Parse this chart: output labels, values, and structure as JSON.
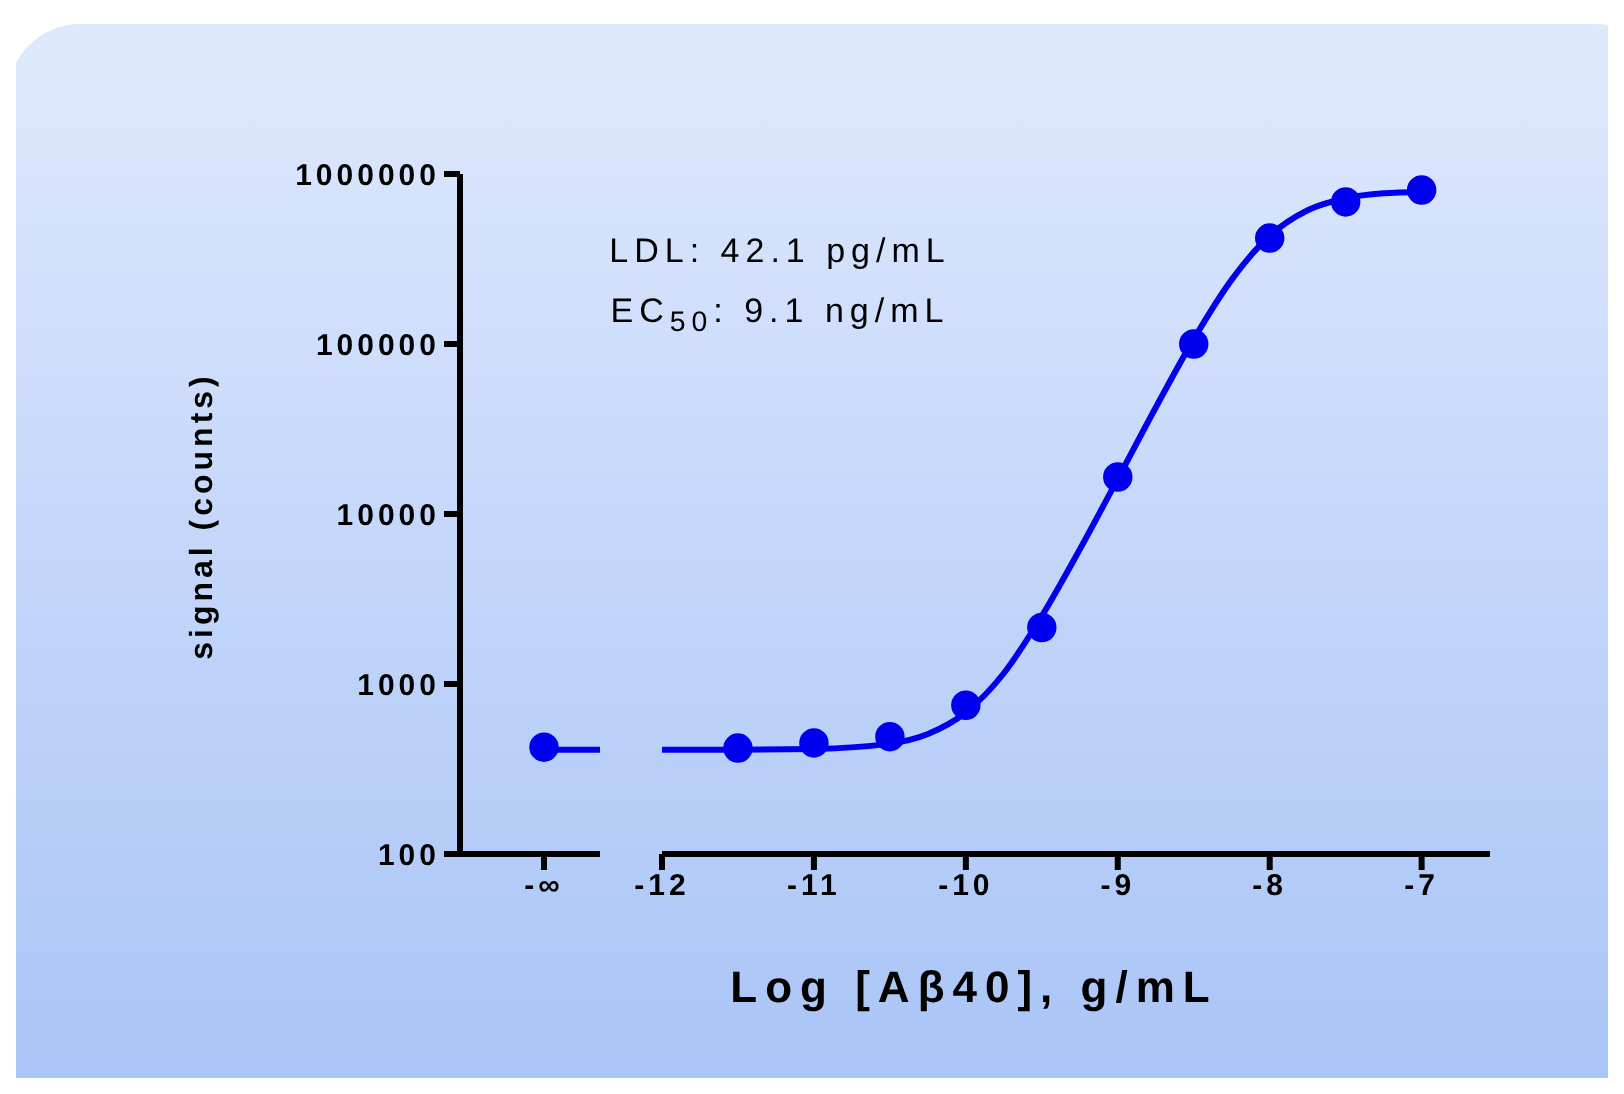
{
  "chart_data": [
    {
      "type": "scatter",
      "ylabel": "signal (counts)",
      "categories": [
        "-∞"
      ],
      "ylim": [
        100,
        1000000
      ],
      "yticks": [
        100,
        1000,
        10000,
        100000,
        1000000
      ],
      "log": "y",
      "grid": false,
      "ref_lines": [
        {
          "axis": "y",
          "value": 410,
          "color": "#0000ee"
        }
      ],
      "series": [
        {
          "color": "#0000ee",
          "values": [
            425
          ],
          "marker": "circle"
        }
      ]
    },
    {
      "type": "scatter",
      "xlabel": "Log [Aβ40], g/mL",
      "annotations": [
        "LDL: 42.1 pg/mL",
        "EC$_{50}$: 9.1 ng/mL"
      ],
      "x": [
        -11.5,
        -11,
        -10.5,
        -10,
        -9.5,
        -9,
        -8.5,
        -8,
        -7.5,
        -7
      ],
      "xlim": [
        -12,
        -6.55
      ],
      "xticks": [
        -12,
        -11,
        -10,
        -9,
        -8,
        -7
      ],
      "ylim": [
        100,
        1000000
      ],
      "log": "y",
      "grid": false,
      "tick_labels": "x",
      "series": [
        {
          "color": "#0000ee",
          "values": [
            420,
            450,
            490,
            750,
            2150,
            16500,
            100000,
            420000,
            685000,
            805000
          ],
          "marker": "circle"
        },
        {
          "type": "line",
          "color": "#0000ee",
          "marker": "none",
          "x": [
            -12,
            -11.5,
            -11,
            -10.5,
            -10.25,
            -10,
            -9.75,
            -9.5,
            -9.25,
            -9,
            -8.75,
            -8.5,
            -8.25,
            -8,
            -7.75,
            -7.5,
            -7.25,
            -7
          ],
          "values": [
            410,
            411,
            415,
            446,
            508,
            681,
            1157,
            2510,
            6190,
            16100,
            42300,
            106800,
            239200,
            432800,
            612400,
            720400,
            769700,
            784700
          ]
        }
      ]
    }
  ]
}
